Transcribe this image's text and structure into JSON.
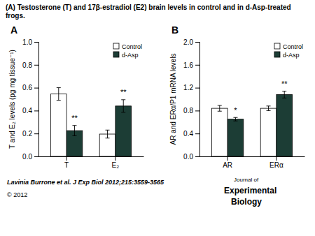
{
  "title": "(A) Testosterone (T) and 17β-estradiol (E2) brain levels in control and in d-Asp-treated frogs.",
  "annotations": [
    "Lavinia Burrone et al. J Exp Biol 2012;215:3559-3565",
    "© 2012",
    "Journal of",
    "Experimental",
    "Biology"
  ],
  "chart_data": [
    {
      "type": "bar",
      "title": "A",
      "categories": [
        "T",
        "E₂"
      ],
      "series": [
        {
          "name": "Control",
          "color": "#ffffff",
          "values": [
            0.545,
            0.195
          ],
          "errors": [
            0.055,
            0.035
          ]
        },
        {
          "name": "d-Asp",
          "color": "#1c3d35",
          "values": [
            0.225,
            0.44
          ],
          "errors": [
            0.045,
            0.055
          ]
        }
      ],
      "ylabel": "T and E₂ levels (pg mg tissue⁻¹)",
      "ylim": [
        0,
        1.0
      ],
      "yticks": [
        {
          "value": 0,
          "label": "0.0"
        },
        0.2,
        0.4,
        0.6,
        0.8,
        {
          "value": 1.0,
          "label": "1.0"
        }
      ],
      "annotations": [
        {
          "text": "**",
          "series": 1,
          "category": 0
        },
        {
          "text": "**",
          "series": 1,
          "category": 1
        }
      ],
      "legend": "upper right"
    },
    {
      "type": "bar",
      "title": "B",
      "categories": [
        "AR",
        "ERα"
      ],
      "series": [
        {
          "name": "Control",
          "color": "#ffffff",
          "values": [
            0.84,
            0.84
          ],
          "errors": [
            0.05,
            0.04
          ]
        },
        {
          "name": "d-Asp",
          "color": "#1c3d35",
          "values": [
            0.65,
            1.08
          ],
          "errors": [
            0.03,
            0.06
          ]
        }
      ],
      "ylabel": "AR and ERα/P1 mRNA levels",
      "ylim": [
        0,
        2.0
      ],
      "yticks": [
        {
          "value": 0,
          "label": "0.0"
        },
        0.4,
        0.8,
        1.2,
        1.6,
        {
          "value": 2.0,
          "label": "2.0"
        }
      ],
      "annotations": [
        {
          "text": "*",
          "series": 1,
          "category": 0
        },
        {
          "text": "**",
          "series": 1,
          "category": 1
        }
      ],
      "legend": "upper right"
    }
  ]
}
